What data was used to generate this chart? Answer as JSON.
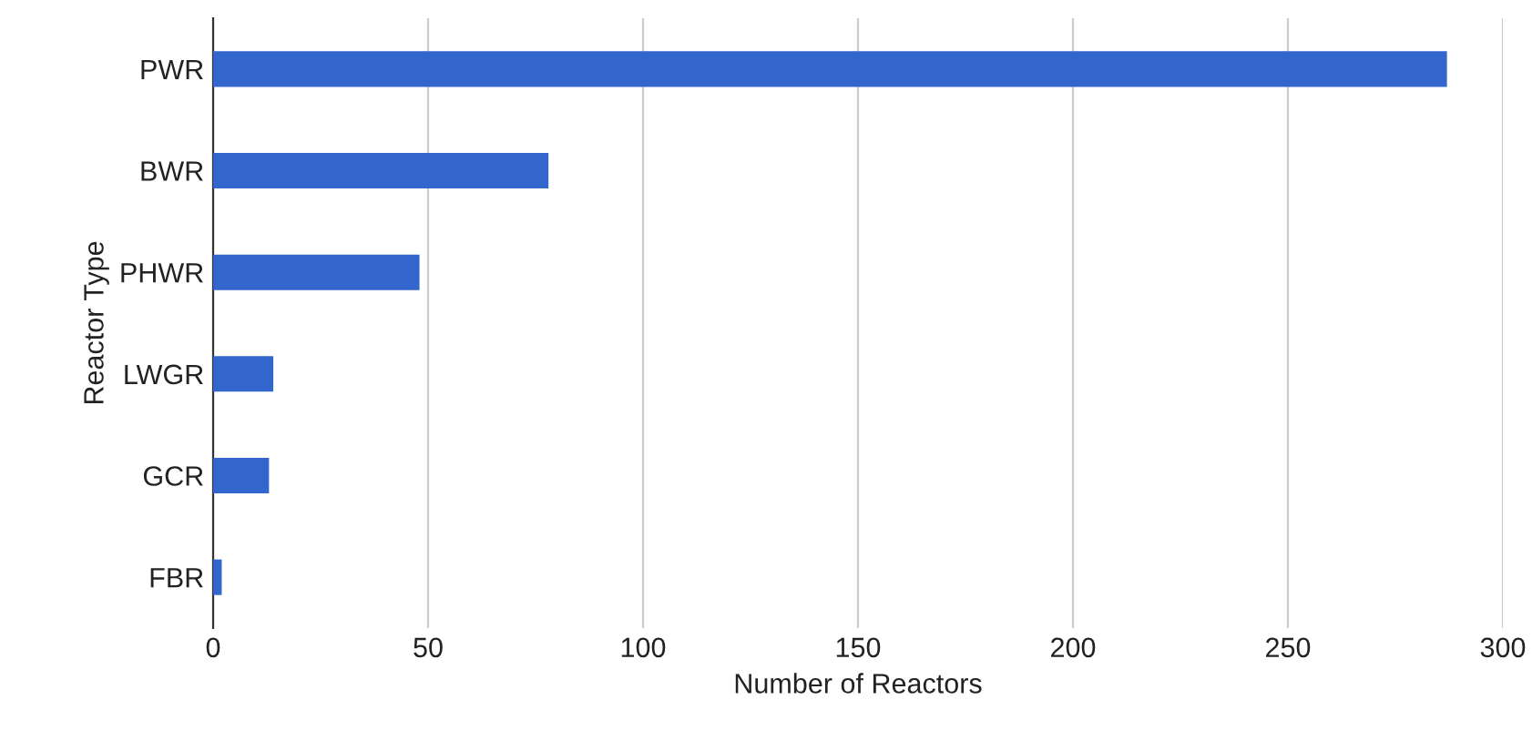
{
  "chart_data": {
    "type": "bar",
    "orientation": "horizontal",
    "xlabel": "Number of Reactors",
    "ylabel": "Reactor Type",
    "categories": [
      "PWR",
      "BWR",
      "PHWR",
      "LWGR",
      "GCR",
      "FBR"
    ],
    "values": [
      287,
      78,
      48,
      14,
      13,
      2
    ],
    "color": "#3366cc",
    "xlim": [
      0,
      300
    ],
    "xticks": [
      0,
      50,
      100,
      150,
      200,
      250,
      300
    ],
    "grid": "x",
    "legend": false
  }
}
